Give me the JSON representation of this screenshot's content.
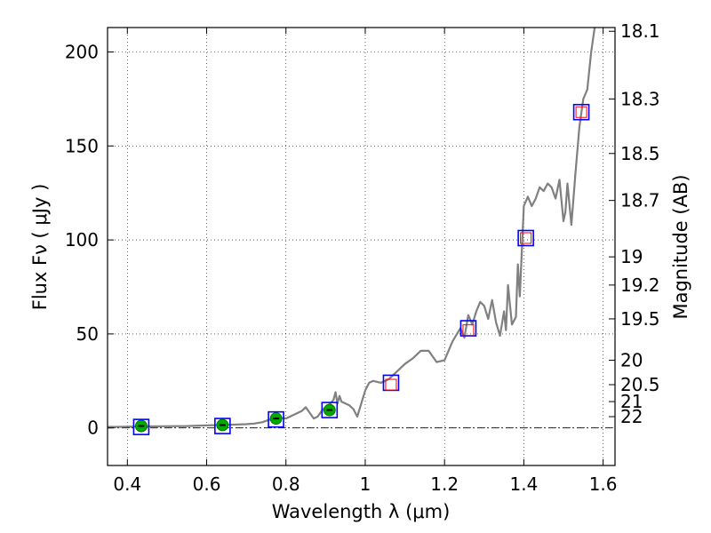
{
  "chart_data": {
    "type": "scatter",
    "title": "",
    "xlabel": "Wavelength  λ (μm)",
    "ylabel": "Flux  Fν  ( μJy )",
    "y2label": "Magnitude (AB)",
    "xlim": [
      0.35,
      1.63
    ],
    "ylim": [
      -20,
      213
    ],
    "grid": true,
    "x_ticks": [
      0.4,
      0.6,
      0.8,
      1.0,
      1.2,
      1.4,
      1.6
    ],
    "x_tick_labels": [
      "0.4",
      "0.6",
      "0.8",
      "1",
      "1.2",
      "1.4",
      "1.6"
    ],
    "y_ticks": [
      0,
      50,
      100,
      150,
      200
    ],
    "y_tick_labels": [
      "0",
      "50",
      "100",
      "150",
      "200"
    ],
    "y2_ticks": [
      {
        "label": "18.1",
        "flux": 211
      },
      {
        "label": "18.3",
        "flux": 175
      },
      {
        "label": "18.5",
        "flux": 146
      },
      {
        "label": "18.7",
        "flux": 121
      },
      {
        "label": "19",
        "flux": 91
      },
      {
        "label": "19.2",
        "flux": 76
      },
      {
        "label": "19.5",
        "flux": 58
      },
      {
        "label": "20",
        "flux": 36
      },
      {
        "label": "20.5",
        "flux": 23
      },
      {
        "label": "21",
        "flux": 14
      },
      {
        "label": "22",
        "flux": 6
      }
    ],
    "reference_line": {
      "y": 0,
      "style": "dash-dot"
    },
    "series": [
      {
        "kind": "model-spectrum",
        "color": "#808080",
        "x": [
          0.35,
          0.4,
          0.45,
          0.5,
          0.55,
          0.6,
          0.65,
          0.7,
          0.72,
          0.74,
          0.76,
          0.78,
          0.8,
          0.82,
          0.84,
          0.85,
          0.86,
          0.87,
          0.88,
          0.89,
          0.9,
          0.91,
          0.92,
          0.925,
          0.93,
          0.935,
          0.94,
          0.95,
          0.96,
          0.97,
          0.98,
          0.99,
          1.0,
          1.01,
          1.02,
          1.04,
          1.06,
          1.08,
          1.1,
          1.12,
          1.14,
          1.16,
          1.18,
          1.2,
          1.22,
          1.24,
          1.25,
          1.26,
          1.27,
          1.28,
          1.29,
          1.3,
          1.31,
          1.32,
          1.33,
          1.34,
          1.35,
          1.355,
          1.36,
          1.37,
          1.38,
          1.385,
          1.39,
          1.4,
          1.41,
          1.42,
          1.43,
          1.44,
          1.45,
          1.46,
          1.47,
          1.48,
          1.49,
          1.5,
          1.505,
          1.51,
          1.52,
          1.53,
          1.54,
          1.55,
          1.56,
          1.57,
          1.58,
          1.59
        ],
        "y": [
          0.5,
          0.6,
          0.8,
          0.9,
          1.0,
          1.3,
          1.6,
          2.0,
          2.3,
          3.0,
          4.5,
          5.5,
          5.0,
          7.0,
          9.0,
          11.0,
          8.0,
          5.0,
          6.0,
          9.0,
          11.0,
          12.5,
          15.0,
          19.0,
          13.0,
          17.0,
          14.0,
          13.0,
          12.0,
          10.0,
          6.0,
          13.0,
          20.0,
          24.0,
          25.0,
          24.0,
          26.0,
          30.0,
          34.0,
          37.0,
          41.0,
          41.0,
          35.0,
          36.0,
          46.0,
          53.0,
          48.0,
          60.0,
          55.0,
          62.0,
          67.0,
          65.0,
          58.0,
          68.0,
          56.0,
          49.0,
          62.0,
          52.0,
          76.0,
          55.0,
          59.0,
          87.0,
          70.0,
          118.0,
          123.0,
          118.0,
          122.0,
          128.0,
          126.0,
          130.0,
          128.0,
          122.0,
          132.0,
          110.0,
          115.0,
          130.0,
          108.0,
          135.0,
          160.0,
          175.0,
          180.0,
          200.0,
          215.0,
          213.0
        ]
      },
      {
        "kind": "observed",
        "marker": "circle",
        "color": "#00aa00",
        "x": [
          0.435,
          0.64,
          0.775,
          0.91
        ],
        "y": [
          1.0,
          1.5,
          5.0,
          9.5
        ]
      },
      {
        "kind": "model-photometry",
        "marker": "square",
        "color": "#0000ff",
        "x": [
          0.435,
          0.64,
          0.775,
          0.91,
          1.065,
          1.26,
          1.405,
          1.545
        ],
        "y": [
          0.5,
          1.0,
          4.5,
          9.5,
          24.0,
          53.0,
          101.0,
          168.0
        ]
      },
      {
        "kind": "model-photometry-inner",
        "marker": "square",
        "color": "#ff0000",
        "x": [
          1.065,
          1.26,
          1.405,
          1.545
        ],
        "y": [
          23.0,
          52.0,
          101.0,
          168.0
        ]
      }
    ]
  }
}
